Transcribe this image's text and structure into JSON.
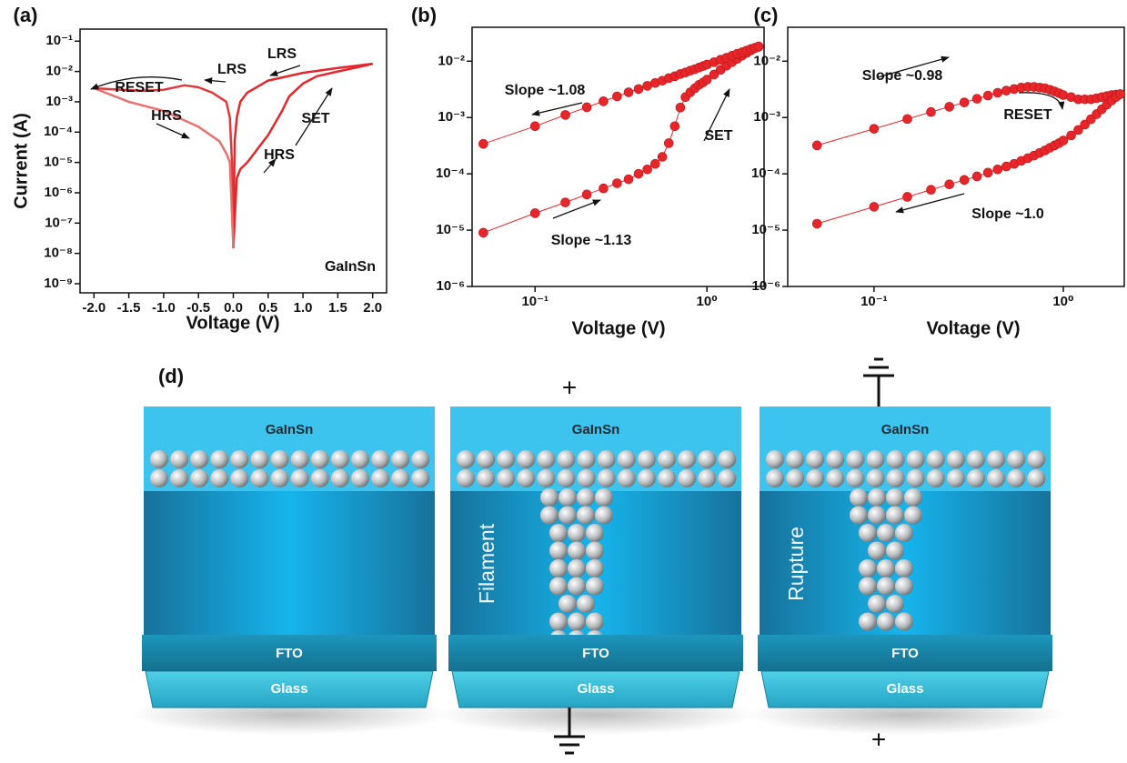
{
  "chart_data": [
    {
      "type": "line",
      "panel_label": "(a)",
      "x_label": "Voltage (V)",
      "y_label": "Current (A)",
      "xscale": "linear",
      "yscale": "log",
      "xlim": [
        -2.2,
        2.2
      ],
      "ylim": [
        5e-10,
        0.25
      ],
      "xticks": [
        {
          "value": -2,
          "label": "-2.0"
        },
        {
          "value": -1.5,
          "label": "-1.5"
        },
        {
          "value": -1,
          "label": "-1.0"
        },
        {
          "value": -0.5,
          "label": "-0.5"
        },
        {
          "value": 0,
          "label": "0.0"
        },
        {
          "value": 0.5,
          "label": "0.5"
        },
        {
          "value": 1,
          "label": "1.0"
        },
        {
          "value": 1.5,
          "label": "1.5"
        },
        {
          "value": 2,
          "label": "2.0"
        }
      ],
      "yticks": [
        {
          "value": 1e-09,
          "label": "10⁻⁹"
        },
        {
          "value": 1e-08,
          "label": "10⁻⁸"
        },
        {
          "value": 1e-07,
          "label": "10⁻⁷"
        },
        {
          "value": 1e-06,
          "label": "10⁻⁶"
        },
        {
          "value": 1e-05,
          "label": "10⁻⁵"
        },
        {
          "value": 0.0001,
          "label": "10⁻⁴"
        },
        {
          "value": 0.001,
          "label": "10⁻³"
        },
        {
          "value": 0.01,
          "label": "10⁻²"
        },
        {
          "value": 0.1,
          "label": "10⁻¹"
        }
      ],
      "series": [
        {
          "color": "#e5262a",
          "x": [
            0.0,
            0.05,
            0.1,
            0.2,
            0.3,
            0.4,
            0.5,
            0.6,
            0.7,
            0.8,
            1.0,
            1.2,
            1.5,
            1.8,
            2.0
          ],
          "values": [
            1.5e-08,
            3e-06,
            6e-06,
            1e-05,
            2e-05,
            4e-05,
            8e-05,
            0.0002,
            0.0005,
            0.0015,
            0.004,
            0.007,
            0.01,
            0.014,
            0.018
          ]
        },
        {
          "color": "#e5262a",
          "x": [
            2.0,
            1.5,
            1.0,
            0.5,
            0.2,
            0.1,
            0.05,
            0.02,
            0.0
          ],
          "values": [
            0.018,
            0.013,
            0.009,
            0.005,
            0.002,
            0.001,
            0.0003,
            5e-05,
            1.5e-08
          ]
        },
        {
          "color": "#e0393c",
          "x": [
            0.0,
            -0.02,
            -0.05,
            -0.1,
            -0.3,
            -0.5,
            -0.7,
            -1.0,
            -1.3,
            -1.6,
            -2.0
          ],
          "values": [
            1.5e-08,
            1e-05,
            0.0003,
            0.001,
            0.002,
            0.003,
            0.0035,
            0.0025,
            0.0023,
            0.0025,
            0.0028
          ]
        },
        {
          "color": "#eb7070",
          "x": [
            -2.0,
            -1.5,
            -1.0,
            -0.5,
            -0.2,
            -0.1,
            -0.05,
            0.0
          ],
          "values": [
            0.0028,
            0.001,
            0.0005,
            0.00015,
            5e-05,
            2e-05,
            1e-05,
            1.5e-08
          ]
        }
      ],
      "annotations": [
        "RESET",
        "LRS",
        "LRS",
        "HRS",
        "SET",
        "HRS",
        "GaInSn"
      ]
    },
    {
      "type": "line",
      "markers": true,
      "panel_label": "(b)",
      "x_label": "Voltage (V)",
      "xscale": "log",
      "yscale": "log",
      "xlim": [
        0.043,
        2.15
      ],
      "ylim": [
        1e-06,
        0.04
      ],
      "xticks": [
        {
          "value": 0.1,
          "label": "10⁻¹"
        },
        {
          "value": 1,
          "label": "10⁰"
        }
      ],
      "yticks": [
        {
          "value": 1e-06,
          "label": "10⁻⁶"
        },
        {
          "value": 1e-05,
          "label": "10⁻⁵"
        },
        {
          "value": 0.0001,
          "label": "10⁻⁴"
        },
        {
          "value": 0.001,
          "label": "10⁻³"
        },
        {
          "value": 0.01,
          "label": "10⁻²"
        }
      ],
      "x": [
        0.05,
        0.1,
        0.15,
        0.2,
        0.25,
        0.3,
        0.35,
        0.4,
        0.45,
        0.5,
        0.55,
        0.6,
        0.65,
        0.7,
        0.75,
        0.8,
        0.85,
        0.9,
        0.95,
        1.0,
        1.1,
        1.2,
        1.3,
        1.4,
        1.5,
        1.6,
        1.7,
        1.8,
        1.9,
        2.0
      ],
      "series": [
        {
          "color": "#e8262a",
          "values": [
            9e-06,
            2e-05,
            3.1e-05,
            4.3e-05,
            5.5e-05,
            6.8e-05,
            8e-05,
            0.0001,
            0.00012,
            0.00015,
            0.0002,
            0.00035,
            0.0007,
            0.0015,
            0.0023,
            0.0028,
            0.0033,
            0.0038,
            0.0042,
            0.0047,
            0.0058,
            0.007,
            0.0083,
            0.0096,
            0.011,
            0.0125,
            0.014,
            0.0155,
            0.017,
            0.018
          ]
        },
        {
          "color": "#e8262a",
          "values": [
            0.00034,
            0.0007,
            0.00111,
            0.00152,
            0.00194,
            0.00237,
            0.0028,
            0.0032,
            0.00365,
            0.0041,
            0.0045,
            0.005,
            0.0054,
            0.0059,
            0.0063,
            0.0068,
            0.0072,
            0.0077,
            0.0082,
            0.0087,
            0.0096,
            0.0106,
            0.0115,
            0.0125,
            0.0135,
            0.0144,
            0.0154,
            0.0164,
            0.0173,
            0.0183
          ]
        }
      ],
      "annotations": [
        "Slope ~1.08",
        "SET",
        "Slope ~1.13"
      ]
    },
    {
      "type": "line",
      "markers": true,
      "panel_label": "(c)",
      "x_label": "Voltage (V)",
      "xscale": "log",
      "yscale": "log",
      "xlim": [
        0.035,
        2.1
      ],
      "ylim": [
        1e-06,
        0.04
      ],
      "xticks": [
        {
          "value": 0.1,
          "label": "10⁻¹"
        },
        {
          "value": 1,
          "label": "10⁰"
        }
      ],
      "yticks": [
        {
          "value": 1e-06,
          "label": "10⁻⁶"
        },
        {
          "value": 1e-05,
          "label": "10⁻⁵"
        },
        {
          "value": 0.0001,
          "label": "10⁻⁴"
        },
        {
          "value": 0.001,
          "label": "10⁻³"
        },
        {
          "value": 0.01,
          "label": "10⁻²"
        }
      ],
      "x": [
        0.05,
        0.1,
        0.15,
        0.2,
        0.25,
        0.3,
        0.35,
        0.4,
        0.45,
        0.5,
        0.55,
        0.6,
        0.65,
        0.7,
        0.75,
        0.8,
        0.85,
        0.9,
        0.95,
        1.0,
        1.1,
        1.2,
        1.3,
        1.4,
        1.5,
        1.6,
        1.7,
        1.8,
        1.9,
        2.0
      ],
      "series": [
        {
          "color": "#e8262a",
          "values": [
            0.00032,
            0.00063,
            0.00094,
            0.00125,
            0.00155,
            0.00185,
            0.00215,
            0.00245,
            0.00275,
            0.003,
            0.0032,
            0.0034,
            0.0035,
            0.0035,
            0.0034,
            0.0033,
            0.0031,
            0.0029,
            0.0027,
            0.0025,
            0.0023,
            0.0021,
            0.0021,
            0.0021,
            0.0022,
            0.0023,
            0.0024,
            0.0025,
            0.00255,
            0.0026
          ]
        },
        {
          "color": "#e8262a",
          "values": [
            1.3e-05,
            2.6e-05,
            3.9e-05,
            5.2e-05,
            6.5e-05,
            7.8e-05,
            9e-05,
            0.000105,
            0.00012,
            0.000135,
            0.00015,
            0.00017,
            0.00019,
            0.00021,
            0.000235,
            0.00026,
            0.00029,
            0.00032,
            0.00035,
            0.00039,
            0.00048,
            0.0006,
            0.00075,
            0.00093,
            0.00115,
            0.0014,
            0.0017,
            0.002,
            0.0023,
            0.0026
          ]
        }
      ],
      "annotations": [
        "Slope ~0.98",
        "RESET",
        "Slope ~1.0"
      ]
    }
  ],
  "diagram": {
    "label": "(d)",
    "devices": [
      {
        "electrode": "GaInSn",
        "fto": "FTO",
        "glass": "Glass"
      },
      {
        "top_terminal": "+",
        "electrode": "GaInSn",
        "side_label": "Filament",
        "fto": "FTO",
        "glass": "Glass"
      },
      {
        "electrode": "GaInSn",
        "side_label": "Rupture",
        "fto": "FTO",
        "glass": "Glass",
        "bottom_terminal": "+"
      }
    ]
  }
}
